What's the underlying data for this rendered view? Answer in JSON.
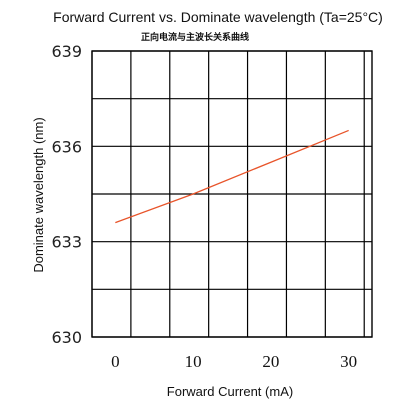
{
  "chart_data": {
    "type": "line",
    "title": "Forward Current vs. Dominate wavelength (Ta=25°C)",
    "subtitle": "正向电流与主波长关系曲线",
    "xlabel": "Forward  Current  (mA)",
    "ylabel": "Dominate wavelength (nm)",
    "xlim": [
      -3,
      33
    ],
    "ylim": [
      630,
      639
    ],
    "xticks": [
      0,
      10,
      20,
      30
    ],
    "yticks": [
      630,
      633,
      636,
      639
    ],
    "x_grid_lines": [
      -3,
      2,
      7,
      12,
      17,
      22,
      27,
      32
    ],
    "y_grid_lines": [
      630,
      631.5,
      633,
      634.5,
      636,
      637.5,
      639
    ],
    "grid": true,
    "series": [
      {
        "x": [
          0,
          10,
          20,
          30
        ],
        "y": [
          633.6,
          634.5,
          635.5,
          636.5
        ],
        "color": "#e8542a"
      }
    ]
  }
}
